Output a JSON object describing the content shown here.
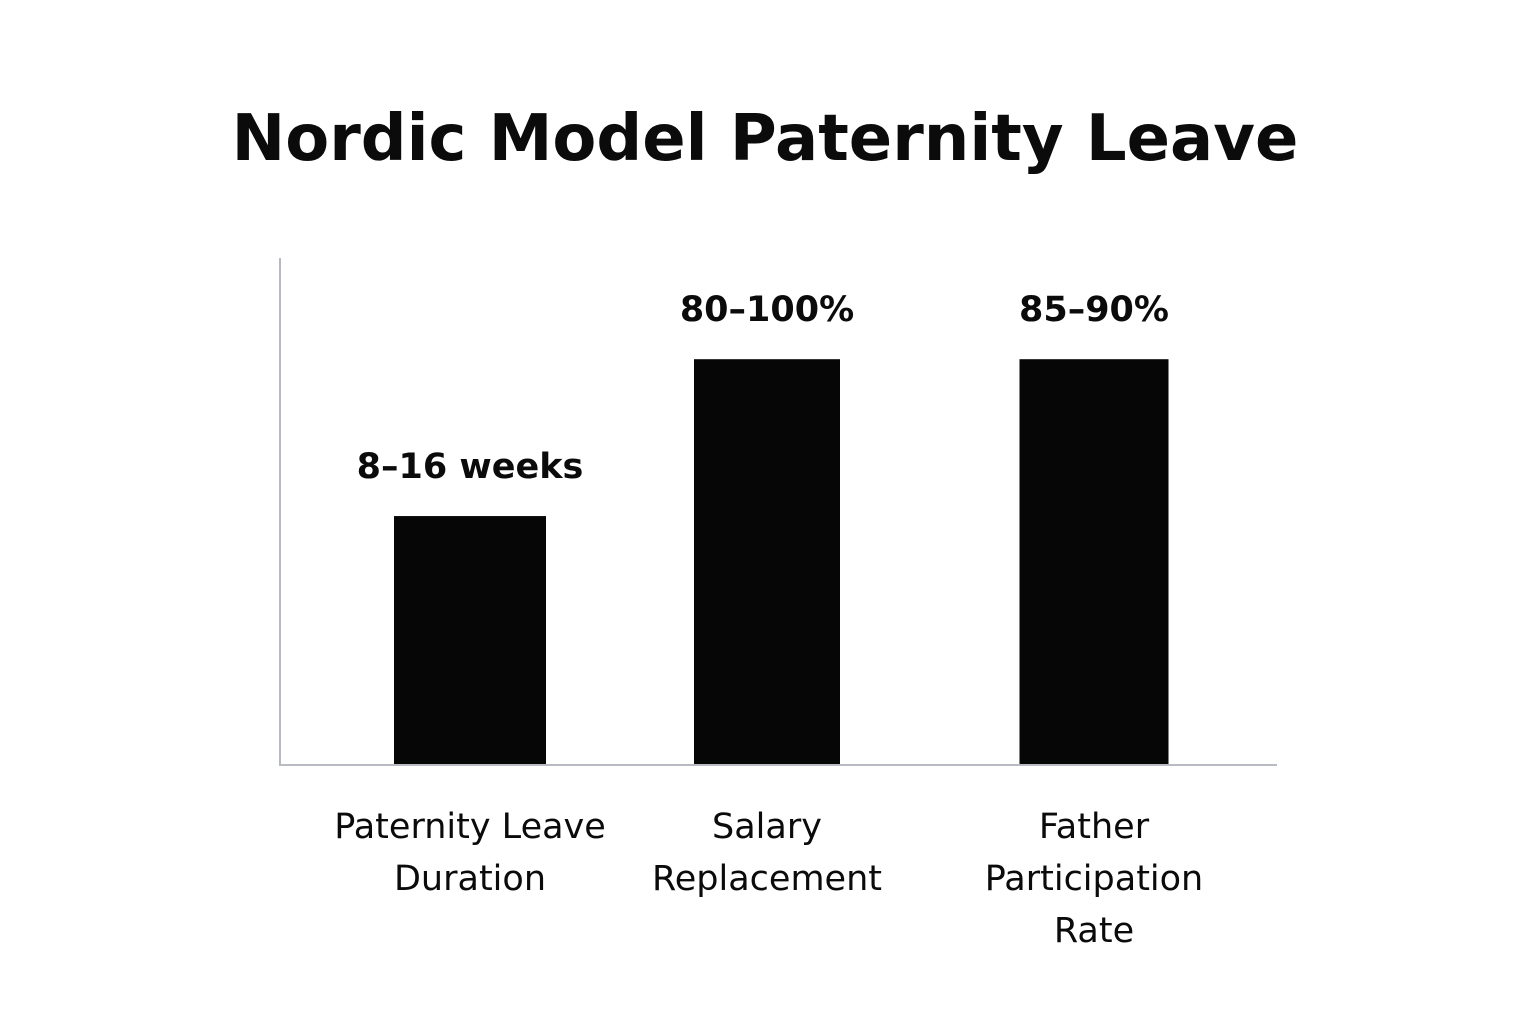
{
  "chart_data": {
    "type": "bar",
    "title": "Nordic Model Paternity Leave",
    "xlabel": "",
    "ylabel": "",
    "grid": false,
    "legend": "none",
    "categories": [
      [
        "Paternity Leave",
        "Duration"
      ],
      [
        "Salary",
        "Replacement"
      ],
      [
        "Father",
        "Participation",
        "Rate"
      ]
    ],
    "values": [
      0.49,
      0.8,
      0.8
    ],
    "value_labels": [
      "8–16 weeks",
      "80–100%",
      "85–90%"
    ],
    "ylim": [
      0,
      1
    ],
    "colors": {
      "bar": "#060606",
      "axis": "#b8bcc2",
      "text": "#0b0b0b"
    }
  }
}
